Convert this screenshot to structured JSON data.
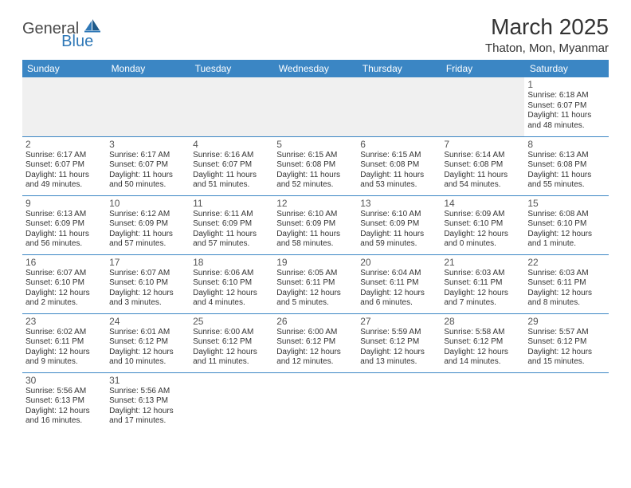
{
  "logo": {
    "text1": "General",
    "text2": "Blue"
  },
  "title": "March 2025",
  "location": "Thaton, Mon, Myanmar",
  "weekdays": [
    "Sunday",
    "Monday",
    "Tuesday",
    "Wednesday",
    "Thursday",
    "Friday",
    "Saturday"
  ],
  "colors": {
    "header_bg": "#3b86c4",
    "header_fg": "#ffffff",
    "border": "#3b86c4",
    "empty_bg": "#f0f0f0",
    "text": "#333333",
    "logo_gray": "#4a4a4a",
    "logo_blue": "#2f78b7"
  },
  "weeks": [
    [
      {
        "empty": true
      },
      {
        "empty": true
      },
      {
        "empty": true
      },
      {
        "empty": true
      },
      {
        "empty": true
      },
      {
        "empty": true
      },
      {
        "day": "1",
        "sunrise": "Sunrise: 6:18 AM",
        "sunset": "Sunset: 6:07 PM",
        "daylight": "Daylight: 11 hours and 48 minutes."
      }
    ],
    [
      {
        "day": "2",
        "sunrise": "Sunrise: 6:17 AM",
        "sunset": "Sunset: 6:07 PM",
        "daylight": "Daylight: 11 hours and 49 minutes."
      },
      {
        "day": "3",
        "sunrise": "Sunrise: 6:17 AM",
        "sunset": "Sunset: 6:07 PM",
        "daylight": "Daylight: 11 hours and 50 minutes."
      },
      {
        "day": "4",
        "sunrise": "Sunrise: 6:16 AM",
        "sunset": "Sunset: 6:07 PM",
        "daylight": "Daylight: 11 hours and 51 minutes."
      },
      {
        "day": "5",
        "sunrise": "Sunrise: 6:15 AM",
        "sunset": "Sunset: 6:08 PM",
        "daylight": "Daylight: 11 hours and 52 minutes."
      },
      {
        "day": "6",
        "sunrise": "Sunrise: 6:15 AM",
        "sunset": "Sunset: 6:08 PM",
        "daylight": "Daylight: 11 hours and 53 minutes."
      },
      {
        "day": "7",
        "sunrise": "Sunrise: 6:14 AM",
        "sunset": "Sunset: 6:08 PM",
        "daylight": "Daylight: 11 hours and 54 minutes."
      },
      {
        "day": "8",
        "sunrise": "Sunrise: 6:13 AM",
        "sunset": "Sunset: 6:08 PM",
        "daylight": "Daylight: 11 hours and 55 minutes."
      }
    ],
    [
      {
        "day": "9",
        "sunrise": "Sunrise: 6:13 AM",
        "sunset": "Sunset: 6:09 PM",
        "daylight": "Daylight: 11 hours and 56 minutes."
      },
      {
        "day": "10",
        "sunrise": "Sunrise: 6:12 AM",
        "sunset": "Sunset: 6:09 PM",
        "daylight": "Daylight: 11 hours and 57 minutes."
      },
      {
        "day": "11",
        "sunrise": "Sunrise: 6:11 AM",
        "sunset": "Sunset: 6:09 PM",
        "daylight": "Daylight: 11 hours and 57 minutes."
      },
      {
        "day": "12",
        "sunrise": "Sunrise: 6:10 AM",
        "sunset": "Sunset: 6:09 PM",
        "daylight": "Daylight: 11 hours and 58 minutes."
      },
      {
        "day": "13",
        "sunrise": "Sunrise: 6:10 AM",
        "sunset": "Sunset: 6:09 PM",
        "daylight": "Daylight: 11 hours and 59 minutes."
      },
      {
        "day": "14",
        "sunrise": "Sunrise: 6:09 AM",
        "sunset": "Sunset: 6:10 PM",
        "daylight": "Daylight: 12 hours and 0 minutes."
      },
      {
        "day": "15",
        "sunrise": "Sunrise: 6:08 AM",
        "sunset": "Sunset: 6:10 PM",
        "daylight": "Daylight: 12 hours and 1 minute."
      }
    ],
    [
      {
        "day": "16",
        "sunrise": "Sunrise: 6:07 AM",
        "sunset": "Sunset: 6:10 PM",
        "daylight": "Daylight: 12 hours and 2 minutes."
      },
      {
        "day": "17",
        "sunrise": "Sunrise: 6:07 AM",
        "sunset": "Sunset: 6:10 PM",
        "daylight": "Daylight: 12 hours and 3 minutes."
      },
      {
        "day": "18",
        "sunrise": "Sunrise: 6:06 AM",
        "sunset": "Sunset: 6:10 PM",
        "daylight": "Daylight: 12 hours and 4 minutes."
      },
      {
        "day": "19",
        "sunrise": "Sunrise: 6:05 AM",
        "sunset": "Sunset: 6:11 PM",
        "daylight": "Daylight: 12 hours and 5 minutes."
      },
      {
        "day": "20",
        "sunrise": "Sunrise: 6:04 AM",
        "sunset": "Sunset: 6:11 PM",
        "daylight": "Daylight: 12 hours and 6 minutes."
      },
      {
        "day": "21",
        "sunrise": "Sunrise: 6:03 AM",
        "sunset": "Sunset: 6:11 PM",
        "daylight": "Daylight: 12 hours and 7 minutes."
      },
      {
        "day": "22",
        "sunrise": "Sunrise: 6:03 AM",
        "sunset": "Sunset: 6:11 PM",
        "daylight": "Daylight: 12 hours and 8 minutes."
      }
    ],
    [
      {
        "day": "23",
        "sunrise": "Sunrise: 6:02 AM",
        "sunset": "Sunset: 6:11 PM",
        "daylight": "Daylight: 12 hours and 9 minutes."
      },
      {
        "day": "24",
        "sunrise": "Sunrise: 6:01 AM",
        "sunset": "Sunset: 6:12 PM",
        "daylight": "Daylight: 12 hours and 10 minutes."
      },
      {
        "day": "25",
        "sunrise": "Sunrise: 6:00 AM",
        "sunset": "Sunset: 6:12 PM",
        "daylight": "Daylight: 12 hours and 11 minutes."
      },
      {
        "day": "26",
        "sunrise": "Sunrise: 6:00 AM",
        "sunset": "Sunset: 6:12 PM",
        "daylight": "Daylight: 12 hours and 12 minutes."
      },
      {
        "day": "27",
        "sunrise": "Sunrise: 5:59 AM",
        "sunset": "Sunset: 6:12 PM",
        "daylight": "Daylight: 12 hours and 13 minutes."
      },
      {
        "day": "28",
        "sunrise": "Sunrise: 5:58 AM",
        "sunset": "Sunset: 6:12 PM",
        "daylight": "Daylight: 12 hours and 14 minutes."
      },
      {
        "day": "29",
        "sunrise": "Sunrise: 5:57 AM",
        "sunset": "Sunset: 6:12 PM",
        "daylight": "Daylight: 12 hours and 15 minutes."
      }
    ],
    [
      {
        "day": "30",
        "sunrise": "Sunrise: 5:56 AM",
        "sunset": "Sunset: 6:13 PM",
        "daylight": "Daylight: 12 hours and 16 minutes."
      },
      {
        "day": "31",
        "sunrise": "Sunrise: 5:56 AM",
        "sunset": "Sunset: 6:13 PM",
        "daylight": "Daylight: 12 hours and 17 minutes."
      },
      {
        "empty": true
      },
      {
        "empty": true
      },
      {
        "empty": true
      },
      {
        "empty": true
      },
      {
        "empty": true
      }
    ]
  ]
}
